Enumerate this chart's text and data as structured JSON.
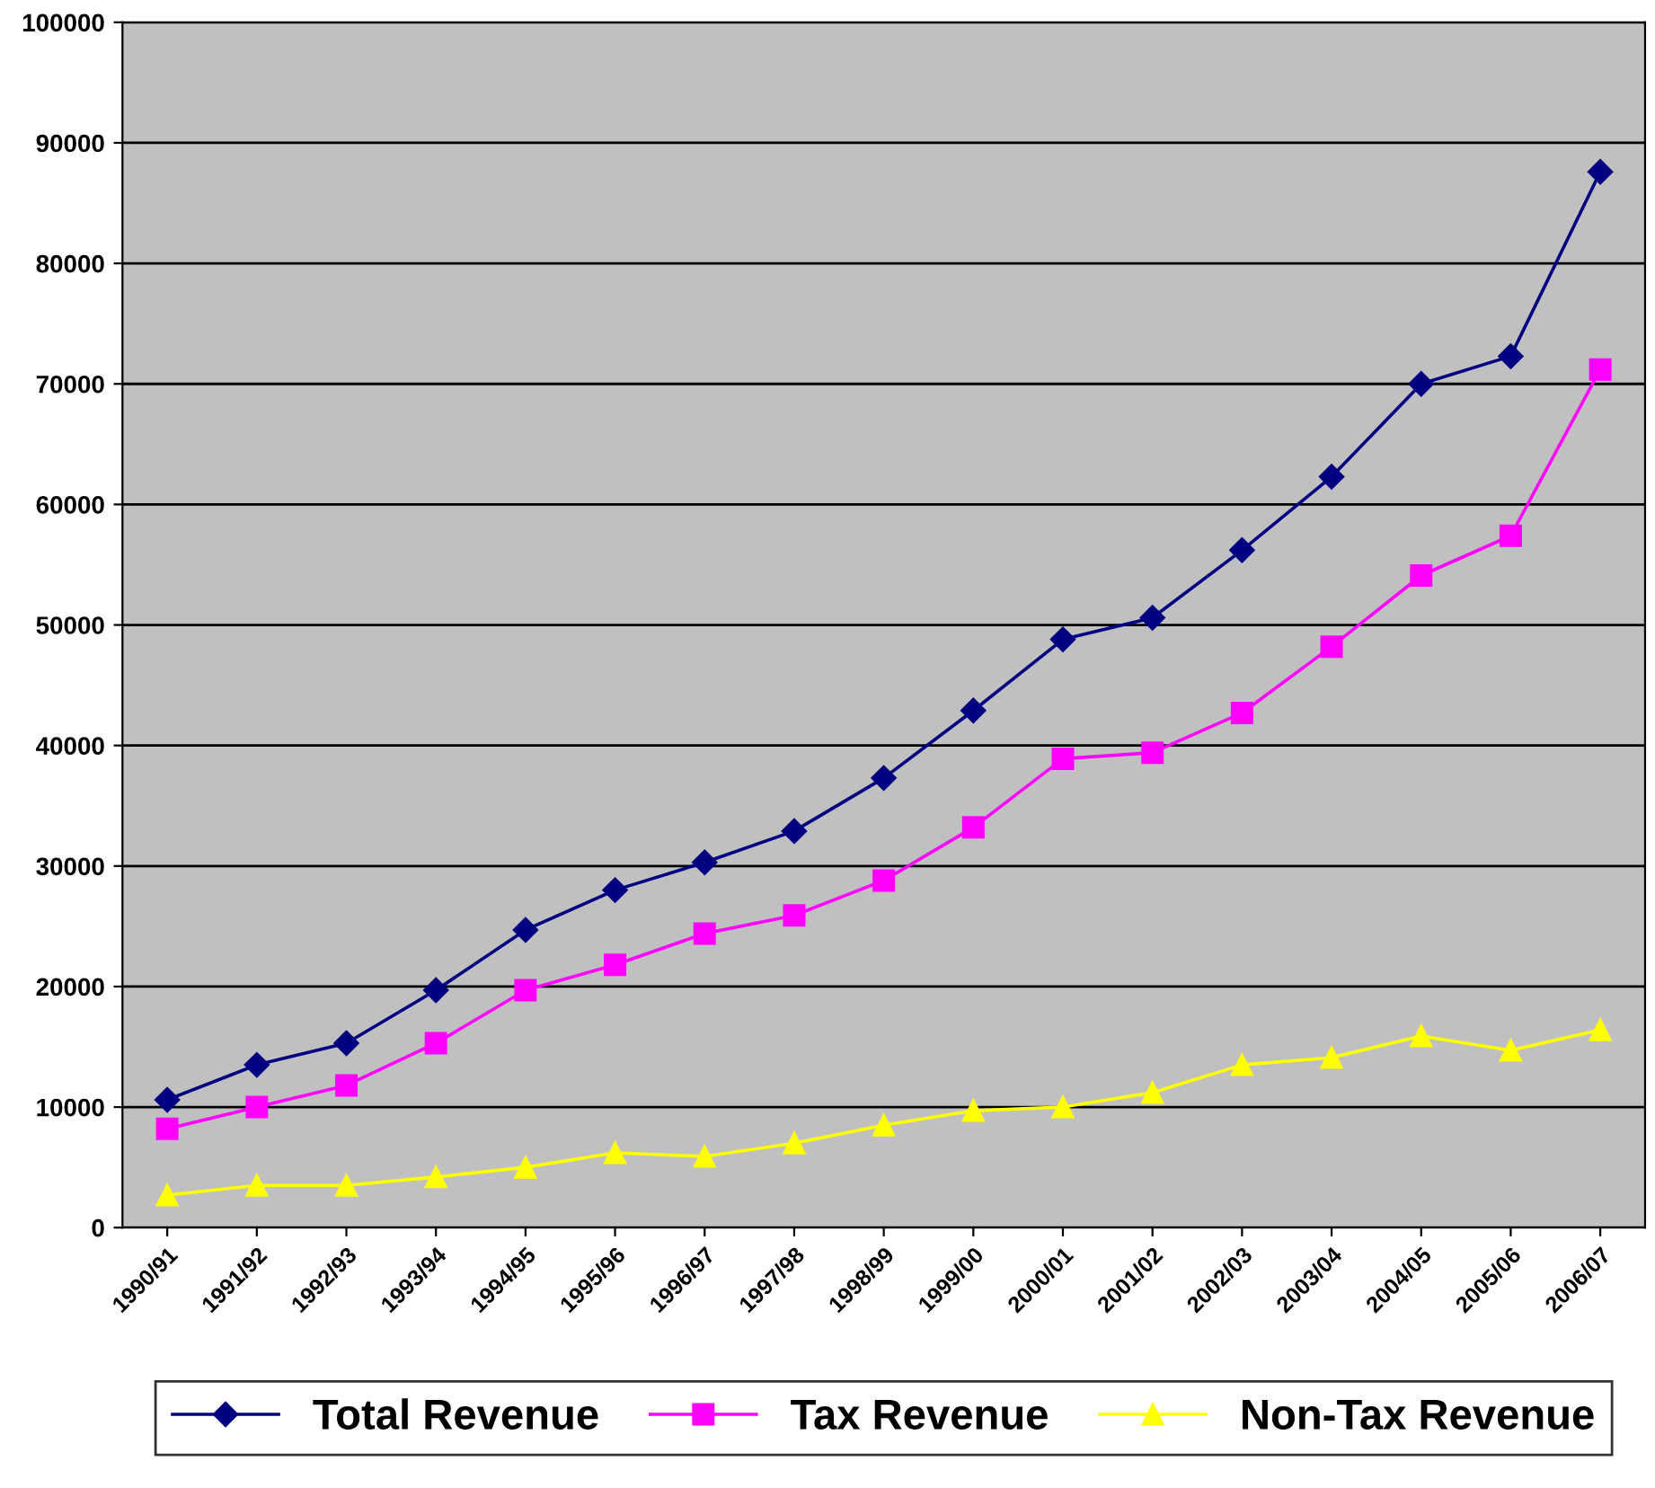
{
  "chart_data": {
    "type": "line",
    "categories": [
      "1990/91",
      "1991/92",
      "1992/93",
      "1993/94",
      "1994/95",
      "1995/96",
      "1996/97",
      "1997/98",
      "1998/99",
      "1999/00",
      "2000/01",
      "2001/02",
      "2002/03",
      "2003/04",
      "2004/05",
      "2005/06",
      "2006/07"
    ],
    "series": [
      {
        "name": "Total Revenue",
        "color": "#000080",
        "marker": "diamond",
        "values": [
          10600,
          13500,
          15300,
          19700,
          24700,
          28000,
          30300,
          32900,
          37300,
          42900,
          48800,
          50600,
          56200,
          62300,
          70000,
          72300,
          87600
        ]
      },
      {
        "name": "Tax Revenue",
        "color": "#ff00ff",
        "marker": "square",
        "values": [
          8200,
          10000,
          11800,
          15300,
          19700,
          21800,
          24400,
          25900,
          28800,
          33200,
          38900,
          39400,
          42700,
          48200,
          54100,
          57400,
          71200
        ]
      },
      {
        "name": "Non-Tax Revenue",
        "color": "#ffff00",
        "marker": "triangle",
        "values": [
          2700,
          3500,
          3500,
          4200,
          5000,
          6200,
          5900,
          7000,
          8500,
          9700,
          10000,
          11200,
          13500,
          14100,
          15900,
          14700,
          16400
        ]
      }
    ],
    "ylim": [
      0,
      100000
    ],
    "yticks": [
      0,
      10000,
      20000,
      30000,
      40000,
      50000,
      60000,
      70000,
      80000,
      90000,
      100000
    ],
    "grid": "y",
    "legend": "bottom"
  }
}
